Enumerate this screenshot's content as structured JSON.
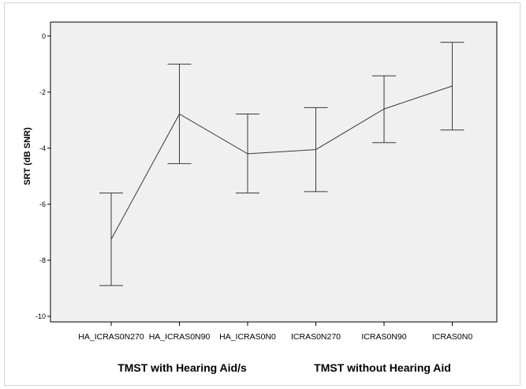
{
  "chart_data": {
    "type": "line",
    "ylabel": "SRT (dB SNR)",
    "xlabel": "",
    "ylim": [
      -10.2,
      0.5
    ],
    "yticks": [
      0,
      -2,
      -4,
      -6,
      -8,
      -10
    ],
    "ytick_labels": [
      "0",
      "-2",
      "-4",
      "-6",
      "-8",
      "-10"
    ],
    "categories": [
      "HA_ICRAS0N270",
      "HA_ICRAS0N90",
      "HA_ICRAS0N0",
      "ICRAS0N270",
      "ICRAS0N90",
      "ICRAS0N0"
    ],
    "series": [
      {
        "values": [
          -7.25,
          -2.78,
          -4.2,
          -4.05,
          -2.6,
          -1.78
        ],
        "error_lower": [
          -8.9,
          -4.55,
          -5.6,
          -5.55,
          -3.8,
          -3.35
        ],
        "error_upper": [
          -5.6,
          -1.0,
          -2.78,
          -2.55,
          -1.42,
          -0.22
        ]
      }
    ],
    "group_labels": [
      "TMST with Hearing Aid/s",
      "TMST without Hearing Aid"
    ],
    "grid": false,
    "colors": {
      "plot_background": "#f0f0f0",
      "line": "#3a3a3a",
      "axis": "#000000"
    }
  }
}
